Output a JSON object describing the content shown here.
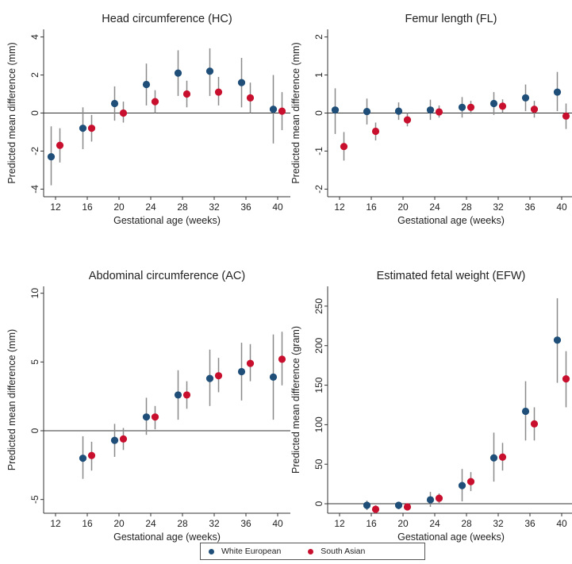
{
  "colors": {
    "white_european": "#1f4e79",
    "south_asian": "#c8102e",
    "ci": "#8a8a8a"
  },
  "legend": {
    "white_european": "White European",
    "south_asian": "South Asian"
  },
  "chart_data": [
    {
      "type": "scatter",
      "title": "Head circumference (HC)",
      "xlabel": "Gestational age (weeks)",
      "ylabel": "Predicted mean difference (mm)",
      "x_ticks": [
        12,
        16,
        20,
        24,
        28,
        32,
        36,
        40
      ],
      "y_ticks": [
        -4,
        -2,
        0,
        2,
        4
      ],
      "xlim": [
        10.5,
        41.6
      ],
      "ylim": [
        -4.4,
        4.4
      ],
      "series": [
        {
          "name": "White European",
          "points": [
            {
              "x": 12,
              "y": -2.3,
              "lo": -3.8,
              "hi": -0.7
            },
            {
              "x": 16,
              "y": -0.8,
              "lo": -1.9,
              "hi": 0.3
            },
            {
              "x": 20,
              "y": 0.5,
              "lo": -0.4,
              "hi": 1.4
            },
            {
              "x": 24,
              "y": 1.5,
              "lo": 0.4,
              "hi": 2.6
            },
            {
              "x": 28,
              "y": 2.1,
              "lo": 0.9,
              "hi": 3.3
            },
            {
              "x": 32,
              "y": 2.2,
              "lo": 0.9,
              "hi": 3.4
            },
            {
              "x": 36,
              "y": 1.6,
              "lo": 0.3,
              "hi": 2.9
            },
            {
              "x": 40,
              "y": 0.2,
              "lo": -1.6,
              "hi": 2.0
            }
          ]
        },
        {
          "name": "South Asian",
          "points": [
            {
              "x": 12,
              "y": -1.7,
              "lo": -2.6,
              "hi": -0.8
            },
            {
              "x": 16,
              "y": -0.8,
              "lo": -1.5,
              "hi": -0.1
            },
            {
              "x": 20,
              "y": 0.0,
              "lo": -0.5,
              "hi": 0.6
            },
            {
              "x": 24,
              "y": 0.6,
              "lo": 0.0,
              "hi": 1.2
            },
            {
              "x": 28,
              "y": 1.0,
              "lo": 0.3,
              "hi": 1.7
            },
            {
              "x": 32,
              "y": 1.1,
              "lo": 0.4,
              "hi": 1.9
            },
            {
              "x": 36,
              "y": 0.8,
              "lo": 0.0,
              "hi": 1.6
            },
            {
              "x": 40,
              "y": 0.1,
              "lo": -0.9,
              "hi": 1.1
            }
          ]
        }
      ]
    },
    {
      "type": "scatter",
      "title": "Femur length (FL)",
      "xlabel": "Gestational age (weeks)",
      "ylabel": "Predicted mean difference (mm)",
      "x_ticks": [
        12,
        16,
        20,
        24,
        28,
        32,
        36,
        40
      ],
      "y_ticks": [
        -2,
        -1,
        0,
        1,
        2
      ],
      "xlim": [
        10.5,
        41.6
      ],
      "ylim": [
        -2.2,
        2.2
      ],
      "series": [
        {
          "name": "White European",
          "points": [
            {
              "x": 12,
              "y": 0.08,
              "lo": -0.55,
              "hi": 0.65
            },
            {
              "x": 16,
              "y": 0.04,
              "lo": -0.3,
              "hi": 0.38
            },
            {
              "x": 20,
              "y": 0.05,
              "lo": -0.18,
              "hi": 0.28
            },
            {
              "x": 24,
              "y": 0.08,
              "lo": -0.18,
              "hi": 0.35
            },
            {
              "x": 28,
              "y": 0.15,
              "lo": -0.12,
              "hi": 0.42
            },
            {
              "x": 32,
              "y": 0.25,
              "lo": -0.05,
              "hi": 0.55
            },
            {
              "x": 36,
              "y": 0.4,
              "lo": 0.05,
              "hi": 0.75
            },
            {
              "x": 40,
              "y": 0.55,
              "lo": 0.05,
              "hi": 1.08
            }
          ]
        },
        {
          "name": "South Asian",
          "points": [
            {
              "x": 12,
              "y": -0.88,
              "lo": -1.25,
              "hi": -0.5
            },
            {
              "x": 16,
              "y": -0.48,
              "lo": -0.72,
              "hi": -0.25
            },
            {
              "x": 20,
              "y": -0.18,
              "lo": -0.35,
              "hi": 0.0
            },
            {
              "x": 24,
              "y": 0.03,
              "lo": -0.12,
              "hi": 0.2
            },
            {
              "x": 28,
              "y": 0.15,
              "lo": -0.02,
              "hi": 0.32
            },
            {
              "x": 32,
              "y": 0.18,
              "lo": 0.0,
              "hi": 0.36
            },
            {
              "x": 36,
              "y": 0.1,
              "lo": -0.12,
              "hi": 0.32
            },
            {
              "x": 40,
              "y": -0.08,
              "lo": -0.42,
              "hi": 0.25
            }
          ]
        }
      ]
    },
    {
      "type": "scatter",
      "title": "Abdominal circumference (AC)",
      "xlabel": "Gestational age (weeks)",
      "ylabel": "Predicted mean difference (mm)",
      "x_ticks": [
        12,
        16,
        20,
        24,
        28,
        32,
        36,
        40
      ],
      "y_ticks": [
        -5,
        0,
        5,
        10
      ],
      "xlim": [
        10.5,
        41.6
      ],
      "ylim": [
        -6,
        10.5
      ],
      "series": [
        {
          "name": "White European",
          "points": [
            {
              "x": 16,
              "y": -2.0,
              "lo": -3.5,
              "hi": -0.4
            },
            {
              "x": 20,
              "y": -0.7,
              "lo": -1.9,
              "hi": 0.5
            },
            {
              "x": 24,
              "y": 1.0,
              "lo": -0.3,
              "hi": 2.4
            },
            {
              "x": 28,
              "y": 2.6,
              "lo": 0.8,
              "hi": 4.4
            },
            {
              "x": 32,
              "y": 3.8,
              "lo": 1.8,
              "hi": 5.9
            },
            {
              "x": 36,
              "y": 4.3,
              "lo": 2.2,
              "hi": 6.4
            },
            {
              "x": 40,
              "y": 3.9,
              "lo": 0.8,
              "hi": 7.0
            }
          ]
        },
        {
          "name": "South Asian",
          "points": [
            {
              "x": 16,
              "y": -1.8,
              "lo": -2.9,
              "hi": -0.8
            },
            {
              "x": 20,
              "y": -0.6,
              "lo": -1.4,
              "hi": 0.2
            },
            {
              "x": 24,
              "y": 1.0,
              "lo": 0.1,
              "hi": 1.8
            },
            {
              "x": 28,
              "y": 2.6,
              "lo": 1.6,
              "hi": 3.6
            },
            {
              "x": 32,
              "y": 4.0,
              "lo": 2.8,
              "hi": 5.3
            },
            {
              "x": 36,
              "y": 4.9,
              "lo": 3.6,
              "hi": 6.3
            },
            {
              "x": 40,
              "y": 5.2,
              "lo": 3.3,
              "hi": 7.2
            }
          ]
        }
      ]
    },
    {
      "type": "scatter",
      "title": "Estimated fetal weight (EFW)",
      "xlabel": "Gestational age (weeks)",
      "ylabel": "Predicted mean difference (gram)",
      "x_ticks": [
        12,
        16,
        20,
        24,
        28,
        32,
        36,
        40
      ],
      "y_ticks": [
        0,
        50,
        100,
        150,
        200,
        250
      ],
      "xlim": [
        10.5,
        41.6
      ],
      "ylim": [
        -12,
        275
      ],
      "series": [
        {
          "name": "White European",
          "points": [
            {
              "x": 16,
              "y": -2,
              "lo": -8,
              "hi": 4
            },
            {
              "x": 20,
              "y": -2,
              "lo": -7,
              "hi": 2
            },
            {
              "x": 24,
              "y": 5,
              "lo": -4,
              "hi": 15
            },
            {
              "x": 28,
              "y": 23,
              "lo": 3,
              "hi": 44
            },
            {
              "x": 32,
              "y": 58,
              "lo": 28,
              "hi": 90
            },
            {
              "x": 36,
              "y": 117,
              "lo": 80,
              "hi": 155
            },
            {
              "x": 40,
              "y": 207,
              "lo": 153,
              "hi": 260
            }
          ]
        },
        {
          "name": "South Asian",
          "points": [
            {
              "x": 16,
              "y": -7,
              "lo": -12,
              "hi": -2
            },
            {
              "x": 20,
              "y": -4,
              "lo": -8,
              "hi": 0
            },
            {
              "x": 24,
              "y": 7,
              "lo": 1,
              "hi": 13
            },
            {
              "x": 28,
              "y": 28,
              "lo": 16,
              "hi": 40
            },
            {
              "x": 32,
              "y": 59,
              "lo": 42,
              "hi": 77
            },
            {
              "x": 36,
              "y": 101,
              "lo": 80,
              "hi": 122
            },
            {
              "x": 40,
              "y": 158,
              "lo": 122,
              "hi": 193
            }
          ]
        }
      ]
    }
  ]
}
